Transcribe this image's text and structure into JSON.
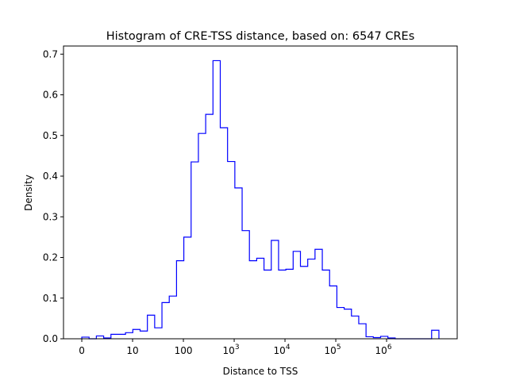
{
  "chart_data": {
    "type": "histogram",
    "title": "Histogram of CRE-TSS distance, based on: 6547 CREs",
    "xlabel": "Distance to TSS",
    "ylabel": "Density",
    "x_scale": "log10 (0 shown at origin)",
    "x_range_log10_units": [
      -0.36,
      7.39
    ],
    "bin_range_log10_units": [
      0,
      7.03
    ],
    "ylim": [
      0,
      0.72
    ],
    "line_color": "#0000ff",
    "x_ticks": [
      {
        "pos": 0,
        "base": "0",
        "exp": ""
      },
      {
        "pos": 1,
        "base": "10",
        "exp": ""
      },
      {
        "pos": 2,
        "base": "100",
        "exp": ""
      },
      {
        "pos": 3,
        "base": "10",
        "exp": "3"
      },
      {
        "pos": 4,
        "base": "10",
        "exp": "4"
      },
      {
        "pos": 5,
        "base": "10",
        "exp": "5"
      },
      {
        "pos": 6,
        "base": "10",
        "exp": "6"
      }
    ],
    "y_ticks": [
      "0.0",
      "0.1",
      "0.2",
      "0.3",
      "0.4",
      "0.5",
      "0.6",
      "0.7"
    ],
    "densities": [
      0.004,
      0,
      0.007,
      0.002,
      0.011,
      0.011,
      0.015,
      0.023,
      0.019,
      0.058,
      0.027,
      0.089,
      0.105,
      0.192,
      0.25,
      0.435,
      0.505,
      0.552,
      0.684,
      0.519,
      0.436,
      0.371,
      0.266,
      0.192,
      0.198,
      0.169,
      0.242,
      0.169,
      0.171,
      0.215,
      0.178,
      0.196,
      0.22,
      0.169,
      0.13,
      0.077,
      0.073,
      0.056,
      0.037,
      0.005,
      0.003,
      0.006,
      0.002,
      0,
      0,
      0,
      0,
      0,
      0.021
    ]
  }
}
